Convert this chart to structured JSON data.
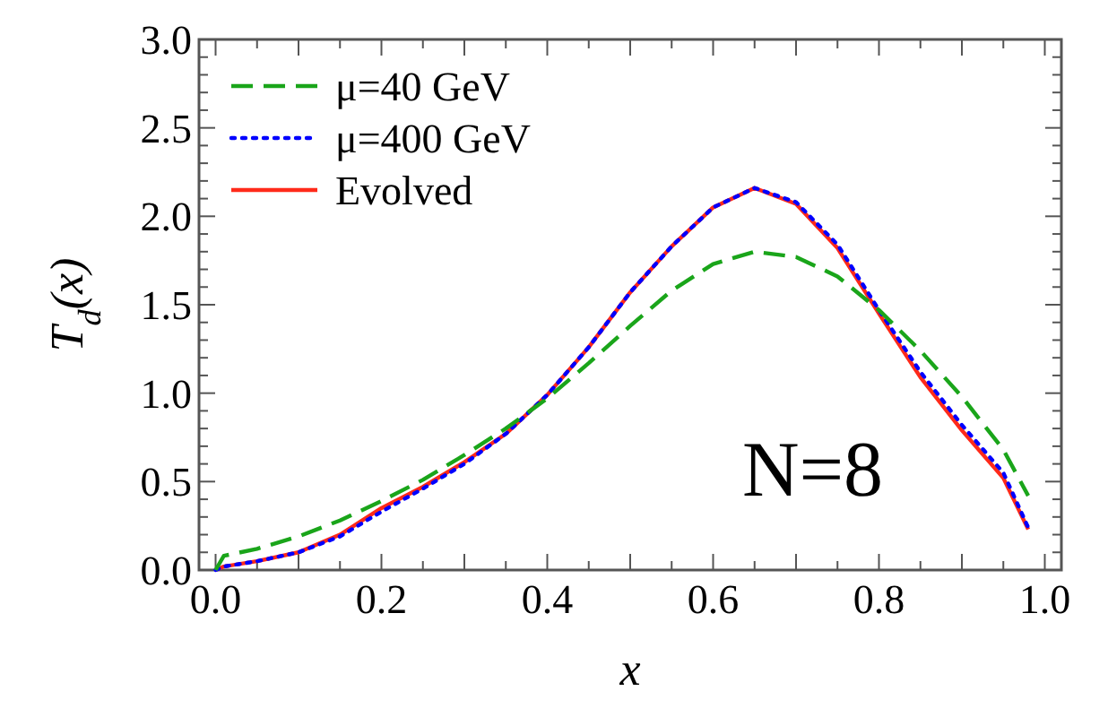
{
  "chart_data": {
    "type": "line",
    "xlabel": "x",
    "ylabel": "T$_{d}$(x)",
    "x": [
      0,
      0.01,
      0.05,
      0.1,
      0.15,
      0.2,
      0.25,
      0.3,
      0.35,
      0.4,
      0.45,
      0.5,
      0.55,
      0.6,
      0.65,
      0.7,
      0.75,
      0.8,
      0.85,
      0.9,
      0.95,
      0.98
    ],
    "series": [
      {
        "name": "μ=40 GeV",
        "color": "#1aa51a",
        "line_style": "dashed",
        "values": [
          0,
          0.08,
          0.12,
          0.19,
          0.28,
          0.39,
          0.51,
          0.65,
          0.8,
          0.97,
          1.17,
          1.38,
          1.58,
          1.73,
          1.8,
          1.77,
          1.66,
          1.47,
          1.24,
          0.98,
          0.68,
          0.42
        ]
      },
      {
        "name": "μ=400 GeV",
        "color": "#0000ff",
        "line_style": "dotted",
        "values": [
          0,
          0.02,
          0.05,
          0.1,
          0.19,
          0.33,
          0.46,
          0.6,
          0.77,
          0.99,
          1.26,
          1.57,
          1.83,
          2.05,
          2.16,
          2.08,
          1.84,
          1.47,
          1.12,
          0.82,
          0.55,
          0.24
        ]
      },
      {
        "name": "Evolved",
        "color": "#ff2a1a",
        "line_style": "solid",
        "values": [
          0,
          0.02,
          0.05,
          0.1,
          0.2,
          0.35,
          0.47,
          0.61,
          0.77,
          0.99,
          1.26,
          1.57,
          1.83,
          2.05,
          2.16,
          2.07,
          1.82,
          1.45,
          1.09,
          0.79,
          0.52,
          0.23
        ]
      }
    ],
    "xlim": [
      -0.02,
      1.02
    ],
    "ylim": [
      0,
      3
    ],
    "xticks": [
      {
        "value": 0,
        "label": "0.0"
      },
      {
        "value": 0.05,
        "label": null
      },
      {
        "value": 0.1,
        "label": null
      },
      {
        "value": 0.15,
        "label": null
      },
      {
        "value": 0.2,
        "label": "0.2"
      },
      {
        "value": 0.25,
        "label": null
      },
      {
        "value": 0.3,
        "label": null
      },
      {
        "value": 0.35,
        "label": null
      },
      {
        "value": 0.4,
        "label": "0.4"
      },
      {
        "value": 0.45,
        "label": null
      },
      {
        "value": 0.5,
        "label": null
      },
      {
        "value": 0.55,
        "label": null
      },
      {
        "value": 0.6,
        "label": "0.6"
      },
      {
        "value": 0.65,
        "label": null
      },
      {
        "value": 0.7,
        "label": null
      },
      {
        "value": 0.75,
        "label": null
      },
      {
        "value": 0.8,
        "label": "0.8"
      },
      {
        "value": 0.85,
        "label": null
      },
      {
        "value": 0.9,
        "label": null
      },
      {
        "value": 0.95,
        "label": null
      },
      {
        "value": 1.0,
        "label": "1.0"
      }
    ],
    "yticks": [
      {
        "value": 0,
        "label": "0.0"
      },
      {
        "value": 0.1,
        "label": null
      },
      {
        "value": 0.2,
        "label": null
      },
      {
        "value": 0.3,
        "label": null
      },
      {
        "value": 0.4,
        "label": null
      },
      0.5,
      {
        "value": 0.6,
        "label": null
      },
      {
        "value": 0.7,
        "label": null
      },
      {
        "value": 0.8,
        "label": null
      },
      {
        "value": 0.9,
        "label": null
      },
      {
        "value": 1.0,
        "label": "1.0"
      },
      {
        "value": 1.1,
        "label": null
      },
      {
        "value": 1.2,
        "label": null
      },
      {
        "value": 1.3,
        "label": null
      },
      {
        "value": 1.4,
        "label": null
      },
      1.5,
      {
        "value": 1.6,
        "label": null
      },
      {
        "value": 1.7,
        "label": null
      },
      {
        "value": 1.8,
        "label": null
      },
      {
        "value": 1.9,
        "label": null
      },
      {
        "value": 2.0,
        "label": "2.0"
      },
      {
        "value": 2.1,
        "label": null
      },
      {
        "value": 2.2,
        "label": null
      },
      {
        "value": 2.3,
        "label": null
      },
      {
        "value": 2.4,
        "label": null
      },
      2.5,
      {
        "value": 2.6,
        "label": null
      },
      {
        "value": 2.7,
        "label": null
      },
      {
        "value": 2.8,
        "label": null
      },
      {
        "value": 2.9,
        "label": null
      },
      {
        "value": 3.0,
        "label": "3.0"
      }
    ],
    "legend": "top left",
    "grid": false,
    "marker": "none",
    "annotations": [
      "N=8"
    ]
  }
}
